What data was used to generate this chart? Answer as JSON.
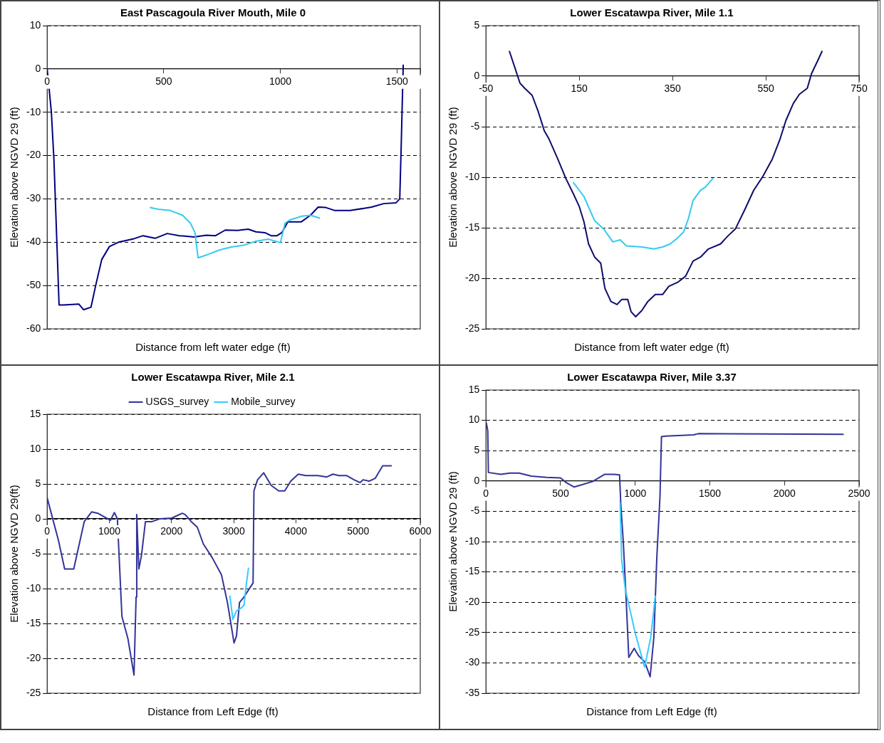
{
  "chart_data": [
    {
      "type": "line",
      "title": "East Pascagoula River Mouth, Mile 0",
      "xlabel": "Distance from left water edge (ft)",
      "ylabel": "Elevation above NGVD 29 (ft)",
      "xlim": [
        0,
        1600
      ],
      "xticks": [
        0,
        500,
        1000,
        1500,
        {
          "value": 1600,
          "label": null
        }
      ],
      "ylim": [
        -60,
        10
      ],
      "yticks": [
        -60,
        -50,
        -40,
        -30,
        -20,
        -10,
        0,
        10
      ],
      "grid": "y",
      "legend": false,
      "series": [
        {
          "color": "#000080",
          "x": [
            0,
            18,
            29,
            51,
            71,
            136,
            156,
            188,
            208,
            234,
            267,
            306,
            372,
            411,
            463,
            515,
            567,
            630,
            683,
            722,
            764,
            816,
            862,
            895,
            934,
            960,
            986,
            1006,
            1032,
            1090,
            1129,
            1162,
            1195,
            1234,
            1299,
            1391,
            1443,
            1496,
            1512,
            1518,
            1522,
            1527
          ],
          "values": [
            0,
            -10,
            -21,
            -54.5,
            -54.5,
            -54.3,
            -55.6,
            -55,
            -50,
            -44,
            -41,
            -40,
            -39.2,
            -38.5,
            -39.1,
            -38,
            -38.5,
            -38.8,
            -38.4,
            -38.5,
            -37.2,
            -37.3,
            -37,
            -37.6,
            -37.8,
            -38.5,
            -38.5,
            -37.8,
            -35.3,
            -35.3,
            -33.8,
            -31.9,
            -32,
            -32.7,
            -32.7,
            -31.9,
            -31.1,
            -30.9,
            -30,
            -18.2,
            -9.5,
            1
          ]
        },
        {
          "color": "#33ccee",
          "x": [
            440,
            476,
            529,
            581,
            614,
            634,
            647,
            686,
            739,
            791,
            843,
            895,
            948,
            1000,
            1020,
            1039,
            1092,
            1131,
            1170
          ],
          "values": [
            -32,
            -32.4,
            -32.7,
            -33.8,
            -35.6,
            -37.8,
            -43.6,
            -42.9,
            -41.8,
            -41.1,
            -40.7,
            -39.8,
            -39.3,
            -40.1,
            -35.6,
            -34.9,
            -34,
            -33.8,
            -34.5
          ]
        }
      ]
    },
    {
      "type": "line",
      "title": "Lower Escatawpa River, Mile 1.1",
      "xlabel": "Distance from left water edge (ft)",
      "ylabel": "Elevation above NGVD 29 (ft)",
      "xlim": [
        -50,
        750
      ],
      "xticks": [
        -50,
        150,
        350,
        550,
        750
      ],
      "ylim": [
        -25,
        5
      ],
      "yticks": [
        -25,
        -20,
        -15,
        -10,
        -5,
        0,
        5
      ],
      "grid": "y",
      "legend": false,
      "series": [
        {
          "color": "#0d0d6b",
          "x": [
            0,
            13,
            23,
            33,
            49,
            62,
            75,
            85,
            104,
            121,
            137,
            150,
            160,
            170,
            183,
            196,
            205,
            218,
            231,
            241,
            254,
            261,
            271,
            284,
            297,
            313,
            329,
            342,
            361,
            378,
            394,
            410,
            427,
            453,
            469,
            485,
            505,
            524,
            544,
            564,
            580,
            593,
            609,
            622,
            639,
            648,
            661,
            671
          ],
          "values": [
            2.5,
            0.7,
            -0.7,
            -1.2,
            -1.9,
            -3.5,
            -5.4,
            -6.2,
            -8.2,
            -10.1,
            -11.6,
            -12.9,
            -14.4,
            -16.6,
            -17.9,
            -18.5,
            -21,
            -22.3,
            -22.6,
            -22.1,
            -22.1,
            -23.3,
            -23.8,
            -23.2,
            -22.3,
            -21.6,
            -21.6,
            -20.8,
            -20.4,
            -19.8,
            -18.3,
            -17.9,
            -17.1,
            -16.6,
            -15.8,
            -15.1,
            -13.2,
            -11.3,
            -9.9,
            -8.2,
            -6.3,
            -4.4,
            -2.7,
            -1.8,
            -1.2,
            0.25,
            1.5,
            2.5
          ]
        },
        {
          "color": "#33ccee",
          "x": [
            137,
            160,
            183,
            202,
            222,
            238,
            251,
            284,
            310,
            329,
            345,
            361,
            374,
            384,
            394,
            410,
            420,
            437
          ],
          "values": [
            -10.5,
            -11.9,
            -14.3,
            -15.1,
            -16.4,
            -16.2,
            -16.8,
            -16.9,
            -17.1,
            -16.9,
            -16.6,
            -16,
            -15.4,
            -14.1,
            -12.3,
            -11.3,
            -11,
            -10.1
          ]
        }
      ]
    },
    {
      "type": "line",
      "title": "Lower Escatawpa River, Mile 2.1",
      "xlabel": "Distance from Left Edge (ft)",
      "ylabel": "Elevation above NGVD 29(ft)",
      "xlim": [
        0,
        6000
      ],
      "xticks": [
        0,
        1000,
        2000,
        3000,
        4000,
        5000,
        6000
      ],
      "ylim": [
        -25,
        15
      ],
      "yticks": [
        -25,
        -20,
        -15,
        -10,
        -5,
        0,
        5,
        10,
        15
      ],
      "grid": "y",
      "legend": "top",
      "series": [
        {
          "name": "USGS_survey",
          "color": "#333399",
          "x": [
            0,
            184,
            281,
            427,
            596,
            717,
            814,
            936,
            1018,
            1081,
            1129,
            1154,
            1202,
            1299,
            1396,
            1430,
            1440,
            1474,
            1517,
            1580,
            1687,
            1808,
            2002,
            2172,
            2220,
            2317,
            2414,
            2511,
            2656,
            2802,
            2899,
            3005,
            3044,
            3093,
            3165,
            3311,
            3325,
            3383,
            3481,
            3602,
            3723,
            3820,
            3917,
            4038,
            4159,
            4353,
            4498,
            4595,
            4692,
            4813,
            4935,
            5032,
            5080,
            5177,
            5274,
            5395,
            5541
          ],
          "values": [
            3,
            -3.2,
            -7.2,
            -7.2,
            -0.4,
            1,
            0.8,
            0.2,
            -0.2,
            0.9,
            0,
            -4.8,
            -14,
            -17.2,
            -22.4,
            -11.2,
            0.6,
            -7.2,
            -5.2,
            -0.4,
            -0.4,
            0,
            0.1,
            0.8,
            0.6,
            -0.4,
            -1.2,
            -3.6,
            -5.6,
            -8,
            -12,
            -17.8,
            -16.8,
            -12,
            -11.2,
            -9.2,
            4,
            5.6,
            6.6,
            4.8,
            4,
            4,
            5.4,
            6.4,
            6.2,
            6.2,
            6,
            6.4,
            6.2,
            6.2,
            5.6,
            5.2,
            5.6,
            5.4,
            5.8,
            7.6,
            7.6
          ]
        },
        {
          "name": "Mobile_survey",
          "color": "#33ccff",
          "x": [
            2937,
            2986,
            3044,
            3117,
            3165,
            3199,
            3238
          ],
          "values": [
            -11,
            -14.4,
            -13.2,
            -12.8,
            -12.4,
            -9.6,
            -7
          ]
        }
      ]
    },
    {
      "type": "line",
      "title": "Lower Escatawpa River, Mile 3.37",
      "xlabel": "Distance from Left Edge (ft)",
      "ylabel": "Elevation above NGVD 29 (ft)",
      "xlim": [
        0,
        2500
      ],
      "xticks": [
        0,
        500,
        1000,
        1500,
        2000,
        2500
      ],
      "ylim": [
        -35,
        15
      ],
      "yticks": [
        -35,
        -30,
        -25,
        -20,
        -15,
        -10,
        -5,
        0,
        5,
        10,
        15
      ],
      "grid": "y",
      "legend": false,
      "series": [
        {
          "color": "#333399",
          "x": [
            2,
            12,
            16,
            99,
            160,
            222,
            304,
            406,
            499,
            540,
            591,
            632,
            714,
            796,
            858,
            895,
            903,
            920,
            940,
            957,
            993,
            1022,
            1063,
            1100,
            1125,
            1145,
            1166,
            1176,
            1207,
            1392,
            1422,
            2397
          ],
          "values": [
            9.6,
            8.3,
            1.4,
            1.1,
            1.3,
            1.3,
            0.8,
            0.6,
            0.5,
            -0.3,
            -1,
            -0.7,
            -0.1,
            1.1,
            1.1,
            1,
            -3.6,
            -10,
            -19.9,
            -29.1,
            -27.6,
            -28.8,
            -29.8,
            -32.3,
            -25.8,
            -12.5,
            -2.6,
            7.3,
            7.4,
            7.6,
            7.8,
            7.7
          ]
        },
        {
          "color": "#33ccff",
          "x": [
            899,
            909,
            934,
            1002,
            1063,
            1104,
            1135
          ],
          "values": [
            -3.6,
            -13,
            -17.9,
            -25.3,
            -30.7,
            -25.8,
            -18.9
          ]
        }
      ]
    }
  ]
}
